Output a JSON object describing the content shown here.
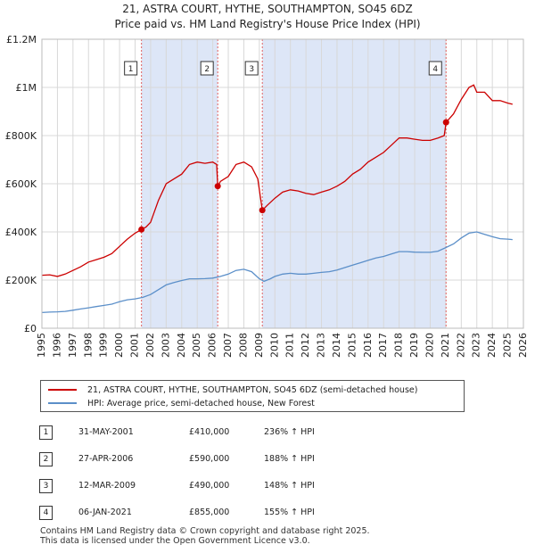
{
  "header": {
    "title_line1": "21, ASTRA COURT, HYTHE, SOUTHAMPTON, SO45 6DZ",
    "title_line2": "Price paid vs. HM Land Registry's House Price Index (HPI)"
  },
  "colors": {
    "property_line": "#cc0000",
    "hpi_line": "#5b8fc9",
    "shade": "#dde6f7",
    "grid": "#d8d8d8",
    "marker_vline": "#e06060"
  },
  "legend": {
    "property_label": "21, ASTRA COURT, HYTHE, SOUTHAMPTON, SO45 6DZ (semi-detached house)",
    "hpi_label": "HPI: Average price, semi-detached house, New Forest"
  },
  "sales": [
    {
      "num": "1",
      "date": "31-MAY-2001",
      "price": "£410,000",
      "hpi": "236% ↑ HPI"
    },
    {
      "num": "2",
      "date": "27-APR-2006",
      "price": "£590,000",
      "hpi": "188% ↑ HPI"
    },
    {
      "num": "3",
      "date": "12-MAR-2009",
      "price": "£490,000",
      "hpi": "148% ↑ HPI"
    },
    {
      "num": "4",
      "date": "06-JAN-2021",
      "price": "£855,000",
      "hpi": "155% ↑ HPI"
    }
  ],
  "footer": {
    "line1": "Contains HM Land Registry data © Crown copyright and database right 2025.",
    "line2": "This data is licensed under the Open Government Licence v3.0."
  },
  "chart_data": {
    "type": "line",
    "title": "Price paid vs. HM Land Registry's House Price Index (HPI)",
    "xlabel": "",
    "ylabel": "",
    "xlim": [
      1995,
      2026
    ],
    "ylim": [
      0,
      1200000
    ],
    "x_ticks": [
      "1995",
      "1996",
      "1997",
      "1998",
      "1999",
      "2000",
      "2001",
      "2002",
      "2003",
      "2004",
      "2005",
      "2006",
      "2007",
      "2008",
      "2009",
      "2010",
      "2011",
      "2012",
      "2013",
      "2014",
      "2015",
      "2016",
      "2017",
      "2018",
      "2019",
      "2020",
      "2021",
      "2022",
      "2023",
      "2024",
      "2025",
      "2026"
    ],
    "y_ticks": [
      {
        "value": 0,
        "label": "£0"
      },
      {
        "value": 200000,
        "label": "£200K"
      },
      {
        "value": 400000,
        "label": "£400K"
      },
      {
        "value": 600000,
        "label": "£600K"
      },
      {
        "value": 800000,
        "label": "£800K"
      },
      {
        "value": 1000000,
        "label": "£1M"
      },
      {
        "value": 1200000,
        "label": "£1.2M"
      }
    ],
    "grid": true,
    "legend_position": "below",
    "shaded_ranges": [
      [
        2001.41,
        2006.32
      ],
      [
        2009.19,
        2021.02
      ]
    ],
    "sale_markers": [
      {
        "label": "1",
        "x": 2001.41,
        "y": 410000
      },
      {
        "label": "2",
        "x": 2006.32,
        "y": 590000
      },
      {
        "label": "3",
        "x": 2009.19,
        "y": 490000
      },
      {
        "label": "4",
        "x": 2021.02,
        "y": 855000
      }
    ],
    "series": [
      {
        "name": "21, ASTRA COURT, HYTHE, SOUTHAMPTON, SO45 6DZ (semi-detached house)",
        "color": "#cc0000",
        "x": [
          1995.0,
          1995.5,
          1996.0,
          1996.5,
          1997.0,
          1997.5,
          1998.0,
          1998.5,
          1999.0,
          1999.5,
          2000.0,
          2000.5,
          2001.0,
          2001.41,
          2001.7,
          2002.0,
          2002.5,
          2003.0,
          2003.5,
          2004.0,
          2004.5,
          2005.0,
          2005.5,
          2006.0,
          2006.25,
          2006.32,
          2006.5,
          2007.0,
          2007.5,
          2008.0,
          2008.5,
          2008.9,
          2009.19,
          2009.5,
          2010.0,
          2010.5,
          2011.0,
          2011.5,
          2012.0,
          2012.5,
          2013.0,
          2013.5,
          2014.0,
          2014.5,
          2015.0,
          2015.5,
          2016.0,
          2016.5,
          2017.0,
          2017.5,
          2018.0,
          2018.5,
          2019.0,
          2019.5,
          2020.0,
          2020.5,
          2020.9,
          2021.02,
          2021.5,
          2022.0,
          2022.5,
          2022.8,
          2023.0,
          2023.5,
          2024.0,
          2024.5,
          2025.0,
          2025.3
        ],
        "values": [
          220000,
          222000,
          215000,
          225000,
          240000,
          255000,
          275000,
          285000,
          295000,
          310000,
          340000,
          370000,
          395000,
          410000,
          420000,
          440000,
          530000,
          600000,
          620000,
          640000,
          680000,
          690000,
          685000,
          690000,
          680000,
          590000,
          610000,
          630000,
          680000,
          690000,
          670000,
          620000,
          490000,
          510000,
          540000,
          565000,
          575000,
          570000,
          560000,
          555000,
          565000,
          575000,
          590000,
          610000,
          640000,
          660000,
          690000,
          710000,
          730000,
          760000,
          790000,
          790000,
          785000,
          780000,
          780000,
          790000,
          800000,
          855000,
          890000,
          950000,
          1000000,
          1010000,
          980000,
          980000,
          945000,
          945000,
          935000,
          930000
        ]
      },
      {
        "name": "HPI: Average price, semi-detached house, New Forest",
        "color": "#5b8fc9",
        "x": [
          1995.0,
          1995.5,
          1996.0,
          1996.5,
          1997.0,
          1997.5,
          1998.0,
          1998.5,
          1999.0,
          1999.5,
          2000.0,
          2000.5,
          2001.0,
          2001.5,
          2002.0,
          2002.5,
          2003.0,
          2003.5,
          2004.0,
          2004.5,
          2005.0,
          2005.5,
          2006.0,
          2006.5,
          2007.0,
          2007.5,
          2008.0,
          2008.5,
          2009.0,
          2009.3,
          2009.7,
          2010.0,
          2010.5,
          2011.0,
          2011.5,
          2012.0,
          2012.5,
          2013.0,
          2013.5,
          2014.0,
          2014.5,
          2015.0,
          2015.5,
          2016.0,
          2016.5,
          2017.0,
          2017.5,
          2018.0,
          2018.5,
          2019.0,
          2019.5,
          2020.0,
          2020.5,
          2021.0,
          2021.5,
          2022.0,
          2022.5,
          2023.0,
          2023.5,
          2024.0,
          2024.5,
          2025.0,
          2025.3
        ],
        "values": [
          65000,
          67000,
          68000,
          70000,
          75000,
          80000,
          85000,
          90000,
          95000,
          100000,
          110000,
          118000,
          122000,
          128000,
          140000,
          160000,
          180000,
          190000,
          198000,
          205000,
          205000,
          206000,
          208000,
          215000,
          225000,
          240000,
          245000,
          235000,
          205000,
          195000,
          205000,
          215000,
          225000,
          228000,
          225000,
          225000,
          228000,
          232000,
          235000,
          242000,
          252000,
          262000,
          272000,
          282000,
          292000,
          298000,
          308000,
          318000,
          318000,
          316000,
          315000,
          315000,
          320000,
          335000,
          350000,
          375000,
          395000,
          400000,
          390000,
          380000,
          372000,
          370000,
          368000
        ]
      }
    ]
  }
}
